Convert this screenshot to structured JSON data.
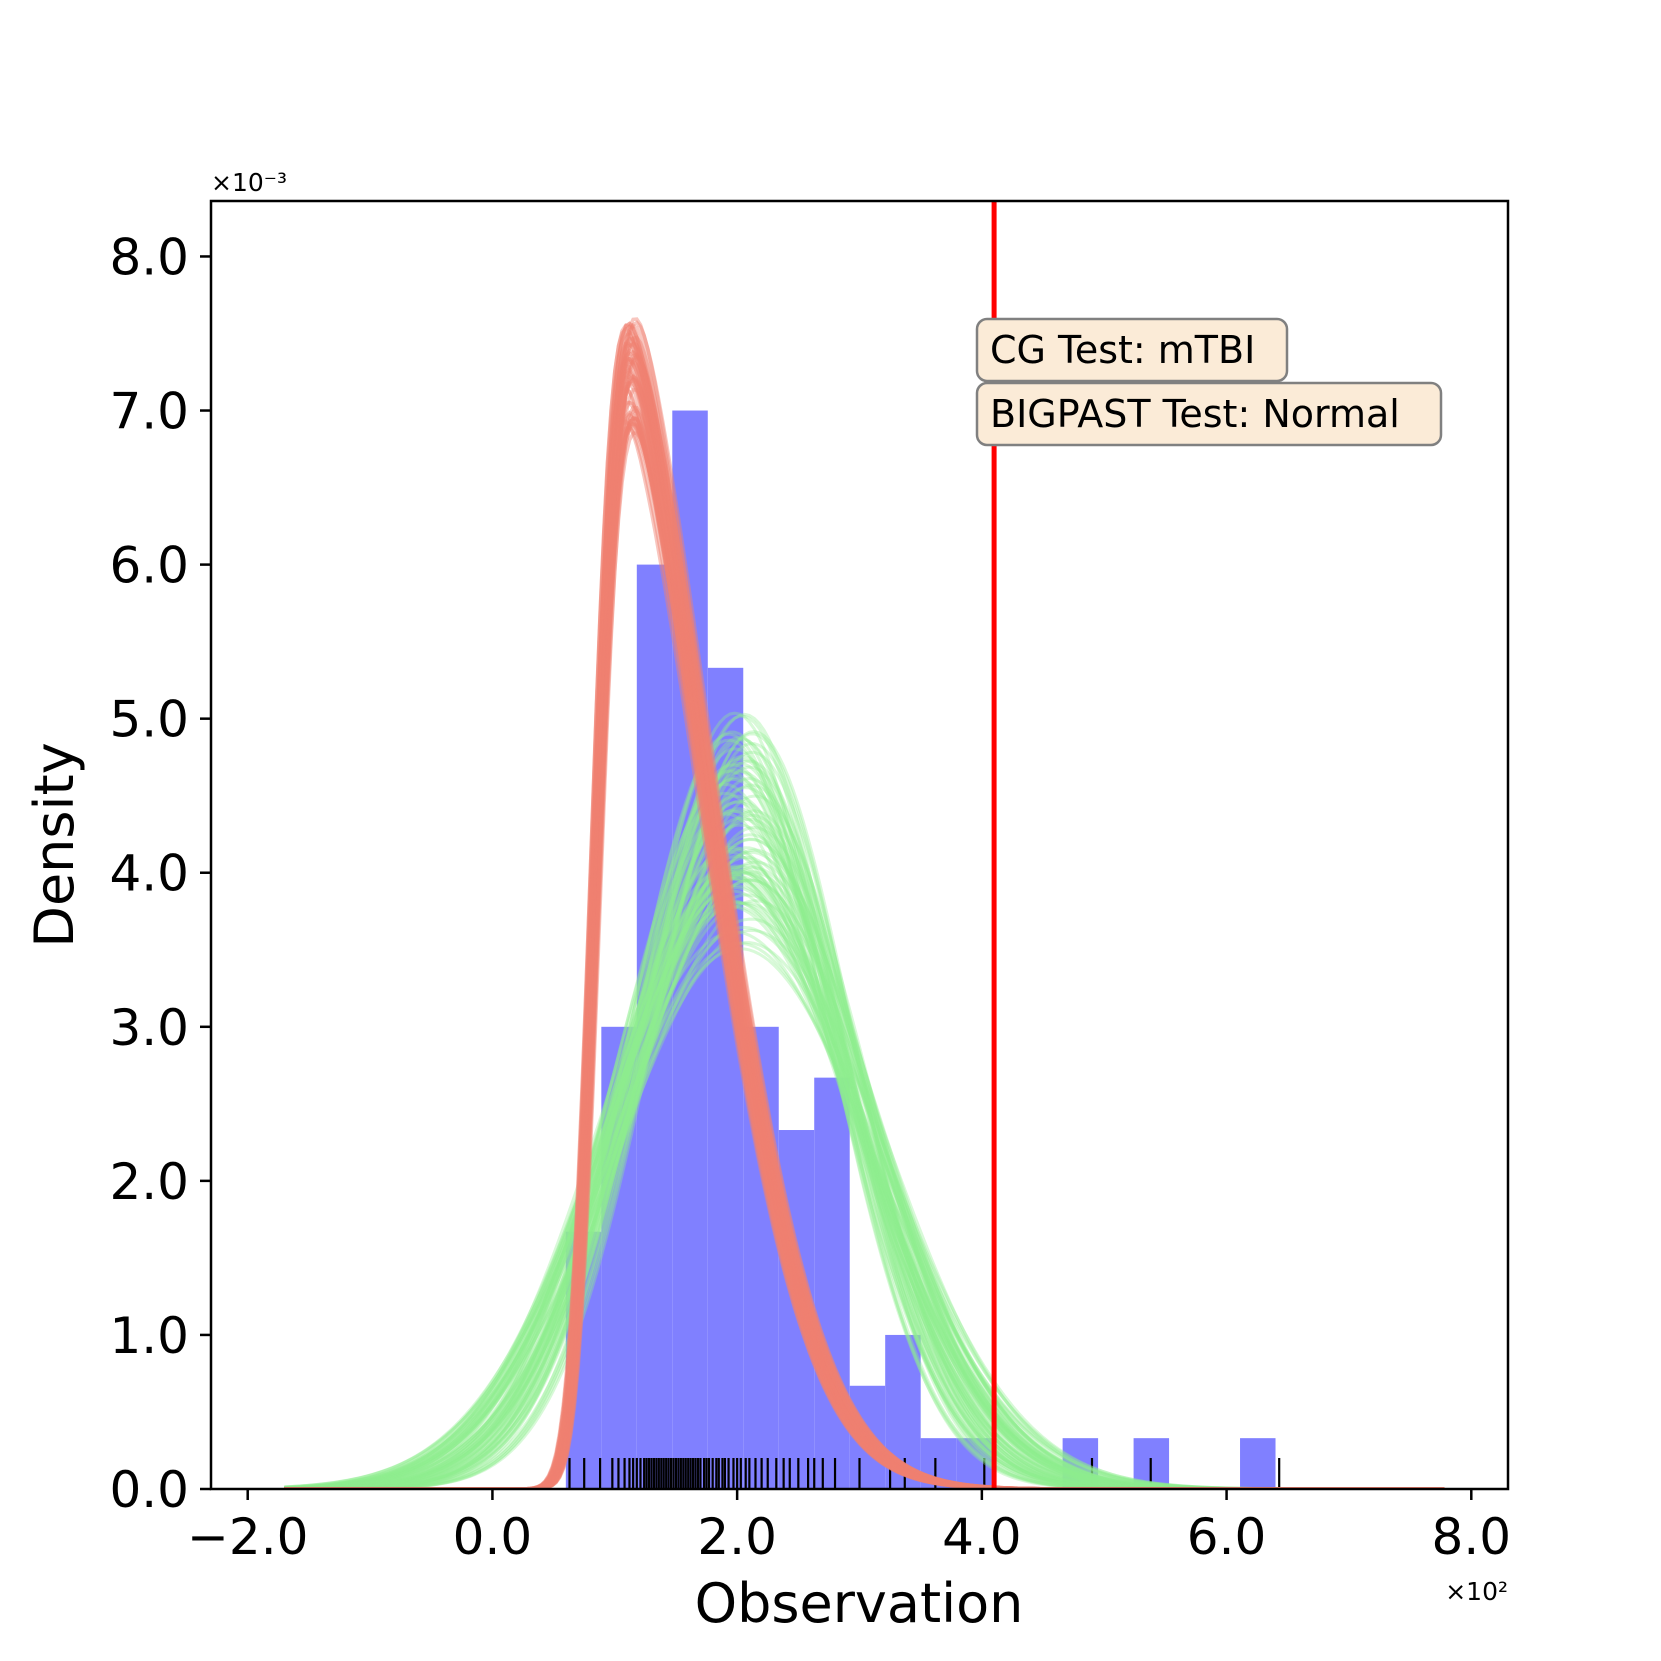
{
  "chart_data": {
    "type": "histogram",
    "xlabel": "Observation",
    "ylabel": "Density",
    "x_scale_label": "×10²",
    "y_scale_label": "×10⁻³",
    "x_scale": 100,
    "y_scale": 0.001,
    "xlim": [
      -230,
      830
    ],
    "ylim": [
      0,
      8.36
    ],
    "x_ticks": [
      -2,
      0,
      2,
      4,
      6,
      8
    ],
    "x_tick_labels": [
      "−2.0",
      "0.0",
      "2.0",
      "4.0",
      "6.0",
      "8.0"
    ],
    "y_ticks": [
      0,
      1,
      2,
      3,
      4,
      5,
      6,
      7,
      8
    ],
    "y_tick_labels": [
      "0.0",
      "1.0",
      "2.0",
      "3.0",
      "4.0",
      "5.0",
      "6.0",
      "7.0",
      "8.0"
    ],
    "histogram": {
      "color": "#8080ff",
      "bin_edges": [
        60,
        89,
        118,
        147,
        176,
        205,
        234,
        263,
        292,
        321,
        350,
        379,
        408,
        437,
        466,
        495,
        524,
        553,
        582,
        611,
        640
      ],
      "densities": [
        1.67,
        3.0,
        6.0,
        7.0,
        5.33,
        3.0,
        2.33,
        2.67,
        0.67,
        1.0,
        0.33,
        0.33,
        0.0,
        0.0,
        0.33,
        0.0,
        0.33,
        0.0,
        0.0,
        0.33
      ]
    },
    "rug_observations": [
      63,
      75,
      88,
      98,
      103,
      108,
      112,
      115,
      118,
      121,
      124,
      126,
      128,
      130,
      132,
      134,
      136,
      138,
      140,
      142,
      144,
      146,
      148,
      150,
      152,
      154,
      156,
      158,
      160,
      162,
      164,
      166,
      168,
      170,
      173,
      175,
      177,
      180,
      183,
      185,
      188,
      190,
      193,
      197,
      200,
      203,
      207,
      210,
      215,
      220,
      225,
      232,
      238,
      243,
      250,
      258,
      263,
      270,
      280,
      300,
      325,
      337,
      362,
      402,
      490,
      538,
      643
    ],
    "rug_color": "#000000",
    "series": [
      {
        "kind": "posterior-curves",
        "color": "#f08070",
        "distribution": "skew-normal",
        "count": 60,
        "location_range": [
          140,
          148
        ],
        "scale_range": [
          85,
          90
        ],
        "shape_range": [
          5.5,
          6.5
        ],
        "peak_range": [
          6.85,
          7.6
        ]
      },
      {
        "kind": "posterior-curves",
        "color": "#90ee90",
        "distribution": "normal",
        "count": 90,
        "mean_range": [
          190,
          215
        ],
        "sd_range": [
          78,
          112
        ],
        "peak_range": [
          3.5,
          5.05
        ]
      }
    ],
    "reference_line": {
      "x": 410,
      "color": "#ff0000"
    },
    "annotations": [
      {
        "text": "CG Test: mTBI",
        "box_color": "#fbebd7",
        "border_color": "#808080"
      },
      {
        "text": "BIGPAST Test: Normal",
        "box_color": "#fbebd7",
        "border_color": "#808080"
      }
    ],
    "grid": false,
    "legend": false
  }
}
